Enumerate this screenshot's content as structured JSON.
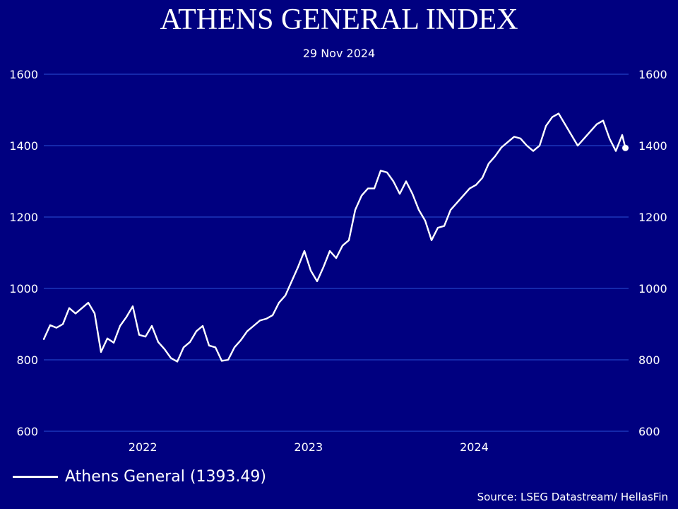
{
  "chart_data": {
    "type": "line",
    "title": "ATHENS GENERAL INDEX",
    "subtitle": "29 Nov 2024",
    "ylim": [
      600,
      1600
    ],
    "yticks": [
      "600",
      "800",
      "1000",
      "1200",
      "1400",
      "1600"
    ],
    "y_axis_sides": "left-and-right",
    "xlim": [
      "2021-05-28",
      "2024-12-06"
    ],
    "xticks": [
      {
        "label": "2022",
        "x": "2022-01-01"
      },
      {
        "label": "2023",
        "x": "2023-01-01"
      },
      {
        "label": "2024",
        "x": "2024-01-01"
      }
    ],
    "grid": true,
    "legend_position": "bottom-left",
    "line_color": "#ffffff",
    "grid_color": "#2a4fd6",
    "series": [
      {
        "name": "Athens General (1393.49)",
        "x": [
          "2021-05-28",
          "2021-06-11",
          "2021-06-25",
          "2021-07-09",
          "2021-07-23",
          "2021-08-06",
          "2021-08-20",
          "2021-09-03",
          "2021-09-17",
          "2021-10-01",
          "2021-10-15",
          "2021-10-29",
          "2021-11-12",
          "2021-11-26",
          "2021-12-10",
          "2021-12-24",
          "2022-01-07",
          "2022-01-21",
          "2022-02-04",
          "2022-02-18",
          "2022-03-04",
          "2022-03-18",
          "2022-04-01",
          "2022-04-15",
          "2022-04-29",
          "2022-05-13",
          "2022-05-27",
          "2022-06-10",
          "2022-06-24",
          "2022-07-08",
          "2022-07-22",
          "2022-08-05",
          "2022-08-19",
          "2022-09-02",
          "2022-09-16",
          "2022-09-30",
          "2022-10-14",
          "2022-10-28",
          "2022-11-11",
          "2022-11-25",
          "2022-12-09",
          "2022-12-23",
          "2023-01-06",
          "2023-01-20",
          "2023-02-03",
          "2023-02-17",
          "2023-03-03",
          "2023-03-17",
          "2023-03-31",
          "2023-04-14",
          "2023-04-28",
          "2023-05-12",
          "2023-05-26",
          "2023-06-09",
          "2023-06-23",
          "2023-07-07",
          "2023-07-21",
          "2023-08-04",
          "2023-08-18",
          "2023-09-01",
          "2023-09-15",
          "2023-09-29",
          "2023-10-13",
          "2023-10-27",
          "2023-11-10",
          "2023-11-24",
          "2023-12-08",
          "2023-12-22",
          "2024-01-05",
          "2024-01-19",
          "2024-02-02",
          "2024-02-16",
          "2024-03-01",
          "2024-03-15",
          "2024-03-29",
          "2024-04-12",
          "2024-04-26",
          "2024-05-10",
          "2024-05-24",
          "2024-06-07",
          "2024-06-21",
          "2024-07-05",
          "2024-07-19",
          "2024-08-02",
          "2024-08-16",
          "2024-08-30",
          "2024-09-13",
          "2024-09-27",
          "2024-10-11",
          "2024-10-25",
          "2024-11-08",
          "2024-11-22",
          "2024-11-29"
        ],
        "values": [
          858,
          897,
          890,
          900,
          945,
          930,
          945,
          960,
          930,
          822,
          860,
          848,
          895,
          920,
          950,
          870,
          865,
          895,
          850,
          830,
          805,
          795,
          835,
          850,
          880,
          895,
          840,
          835,
          797,
          800,
          835,
          855,
          880,
          895,
          910,
          915,
          925,
          960,
          980,
          1020,
          1060,
          1105,
          1050,
          1020,
          1060,
          1105,
          1085,
          1120,
          1135,
          1220,
          1260,
          1280,
          1280,
          1330,
          1325,
          1300,
          1265,
          1300,
          1265,
          1220,
          1190,
          1135,
          1170,
          1175,
          1220,
          1240,
          1260,
          1280,
          1290,
          1310,
          1350,
          1370,
          1395,
          1410,
          1425,
          1420,
          1400,
          1385,
          1400,
          1455,
          1480,
          1490,
          1460,
          1430,
          1400,
          1420,
          1440,
          1460,
          1470,
          1420,
          1385,
          1430,
          1393.49
        ]
      }
    ]
  },
  "legend": {
    "label": "Athens General (1393.49)"
  },
  "footer": {
    "source": "Source: LSEG Datastream/ HellasFin"
  }
}
